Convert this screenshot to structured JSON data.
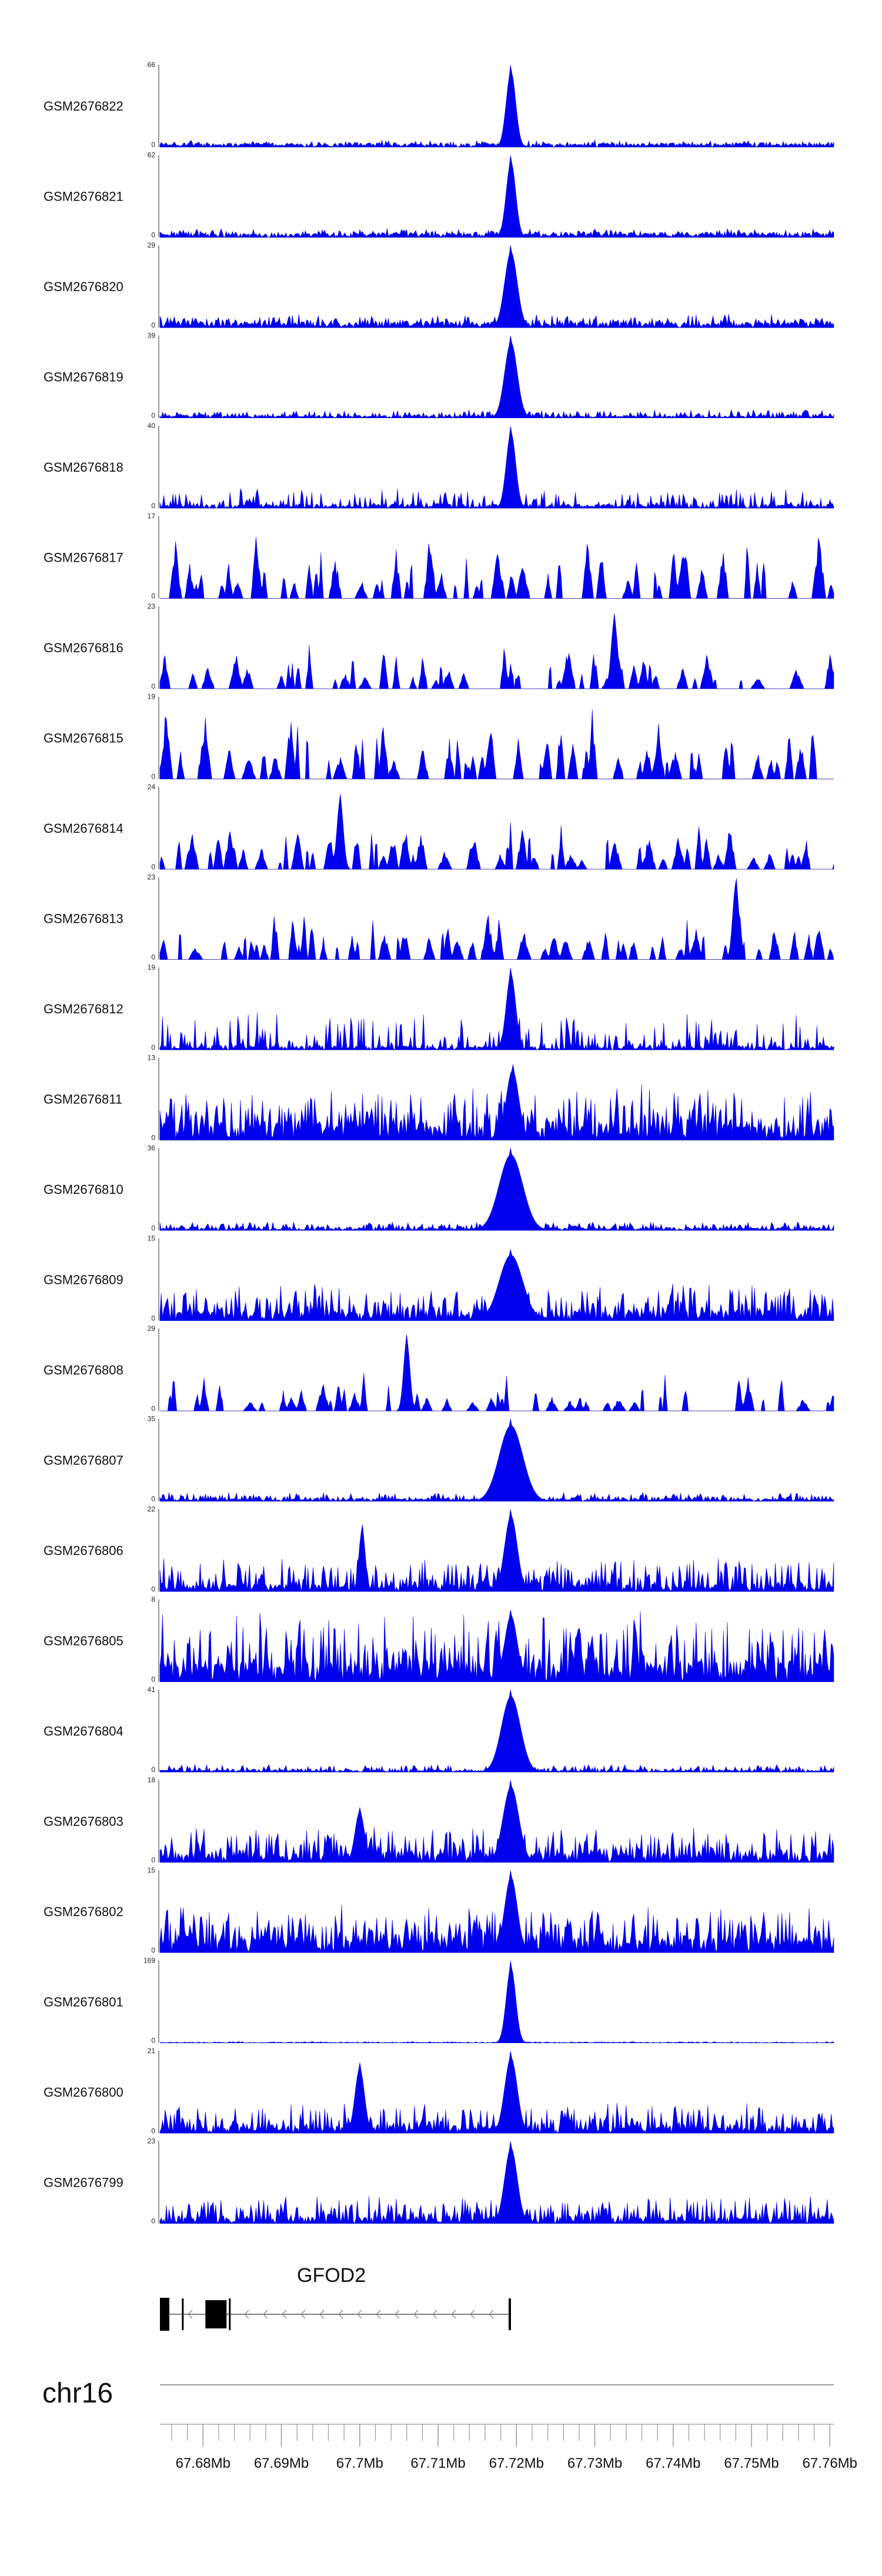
{
  "chart_data": {
    "type": "area",
    "title": "",
    "xlabel": "",
    "ylabel": "",
    "chromosome": "chr16",
    "xlim": [
      67.6745,
      67.7605
    ],
    "x_unit": "Mb",
    "x_ticks": [
      67.68,
      67.69,
      67.7,
      67.71,
      67.72,
      67.73,
      67.74,
      67.75,
      67.76
    ],
    "x_tick_labels": [
      "67.68Mb",
      "67.69Mb",
      "67.7Mb",
      "67.71Mb",
      "67.72Mb",
      "67.73Mb",
      "67.74Mb",
      "67.75Mb",
      "67.76Mb"
    ],
    "series_color": "#0000ee",
    "series": [
      {
        "name": "GSM2676822",
        "ymin": 0,
        "ymax": 66,
        "ymin_label": "0",
        "ymax_label": "66",
        "baseline": 3,
        "noise": 3,
        "peaks": [
          {
            "x": 67.7193,
            "height": 66,
            "width": 0.0006
          }
        ],
        "style": "dense"
      },
      {
        "name": "GSM2676821",
        "ymin": 0,
        "ymax": 62,
        "ymin_label": "0",
        "ymax_label": "62",
        "baseline": 3,
        "noise": 4,
        "peaks": [
          {
            "x": 67.7193,
            "height": 62,
            "width": 0.0006
          }
        ],
        "style": "dense"
      },
      {
        "name": "GSM2676820",
        "ymin": 0,
        "ymax": 29,
        "ymin_label": "0",
        "ymax_label": "29",
        "baseline": 2,
        "noise": 3,
        "peaks": [
          {
            "x": 67.7193,
            "height": 29,
            "width": 0.0008
          }
        ],
        "style": "dense"
      },
      {
        "name": "GSM2676819",
        "ymin": 0,
        "ymax": 39,
        "ymin_label": "0",
        "ymax_label": "39",
        "baseline": 1,
        "noise": 3,
        "peaks": [
          {
            "x": 67.7193,
            "height": 39,
            "width": 0.0008
          }
        ],
        "style": "dense"
      },
      {
        "name": "GSM2676818",
        "ymin": 0,
        "ymax": 40,
        "ymin_label": "0",
        "ymax_label": "40",
        "baseline": 2,
        "noise": 8,
        "peaks": [
          {
            "x": 67.7193,
            "height": 40,
            "width": 0.0006
          }
        ],
        "style": "spiky"
      },
      {
        "name": "GSM2676817",
        "ymin": 0,
        "ymax": 17,
        "ymin_label": "0",
        "ymax_label": "17",
        "baseline": 0,
        "noise": 15,
        "peaks": [],
        "style": "sparse"
      },
      {
        "name": "GSM2676816",
        "ymin": 0,
        "ymax": 23,
        "ymin_label": "0",
        "ymax_label": "23",
        "baseline": 0,
        "noise": 14,
        "peaks": [
          {
            "x": 67.7325,
            "height": 21,
            "width": 0.0004
          }
        ],
        "style": "sparse"
      },
      {
        "name": "GSM2676815",
        "ymin": 0,
        "ymax": 19,
        "ymin_label": "0",
        "ymax_label": "19",
        "baseline": 0,
        "noise": 17,
        "peaks": [],
        "style": "sparse"
      },
      {
        "name": "GSM2676814",
        "ymin": 0,
        "ymax": 24,
        "ymin_label": "0",
        "ymax_label": "24",
        "baseline": 0,
        "noise": 15,
        "peaks": [
          {
            "x": 67.6975,
            "height": 22,
            "width": 0.0004
          }
        ],
        "style": "sparse"
      },
      {
        "name": "GSM2676813",
        "ymin": 0,
        "ymax": 23,
        "ymin_label": "0",
        "ymax_label": "23",
        "baseline": 0,
        "noise": 15,
        "peaks": [
          {
            "x": 67.748,
            "height": 23,
            "width": 0.0004
          }
        ],
        "style": "sparse"
      },
      {
        "name": "GSM2676812",
        "ymin": 0,
        "ymax": 19,
        "ymin_label": "0",
        "ymax_label": "19",
        "baseline": 1,
        "noise": 8,
        "peaks": [
          {
            "x": 67.7193,
            "height": 19,
            "width": 0.0006
          }
        ],
        "style": "spiky"
      },
      {
        "name": "GSM2676811",
        "ymin": 0,
        "ymax": 13,
        "ymin_label": "0",
        "ymax_label": "13",
        "baseline": 3,
        "noise": 6,
        "peaks": [
          {
            "x": 67.7195,
            "height": 12,
            "width": 0.0008
          }
        ],
        "style": "dense"
      },
      {
        "name": "GSM2676810",
        "ymin": 0,
        "ymax": 36,
        "ymin_label": "0",
        "ymax_label": "36",
        "baseline": 1,
        "noise": 3,
        "peaks": [
          {
            "x": 67.7193,
            "height": 36,
            "width": 0.0015
          }
        ],
        "style": "dense"
      },
      {
        "name": "GSM2676809",
        "ymin": 0,
        "ymax": 15,
        "ymin_label": "0",
        "ymax_label": "15",
        "baseline": 2,
        "noise": 5,
        "peaks": [
          {
            "x": 67.7193,
            "height": 13,
            "width": 0.0015
          }
        ],
        "style": "dense"
      },
      {
        "name": "GSM2676808",
        "ymin": 0,
        "ymax": 29,
        "ymin_label": "0",
        "ymax_label": "29",
        "baseline": 0,
        "noise": 14,
        "peaks": [
          {
            "x": 67.706,
            "height": 27,
            "width": 0.0004
          }
        ],
        "style": "sparse"
      },
      {
        "name": "GSM2676807",
        "ymin": 0,
        "ymax": 35,
        "ymin_label": "0",
        "ymax_label": "35",
        "baseline": 1,
        "noise": 3,
        "peaks": [
          {
            "x": 67.7193,
            "height": 35,
            "width": 0.0015
          }
        ],
        "style": "dense"
      },
      {
        "name": "GSM2676806",
        "ymin": 0,
        "ymax": 22,
        "ymin_label": "0",
        "ymax_label": "22",
        "baseline": 2,
        "noise": 7,
        "peaks": [
          {
            "x": 67.7193,
            "height": 22,
            "width": 0.0008
          },
          {
            "x": 67.7003,
            "height": 18,
            "width": 0.0004
          }
        ],
        "style": "dense"
      },
      {
        "name": "GSM2676805",
        "ymin": 0,
        "ymax": 8,
        "ymin_label": "0",
        "ymax_label": "8",
        "baseline": 2,
        "noise": 5,
        "peaks": [
          {
            "x": 67.7193,
            "height": 7,
            "width": 0.0008
          }
        ],
        "style": "dense"
      },
      {
        "name": "GSM2676804",
        "ymin": 0,
        "ymax": 41,
        "ymin_label": "0",
        "ymax_label": "41",
        "baseline": 1,
        "noise": 3,
        "peaks": [
          {
            "x": 67.7193,
            "height": 41,
            "width": 0.0012
          }
        ],
        "style": "dense"
      },
      {
        "name": "GSM2676803",
        "ymin": 0,
        "ymax": 18,
        "ymin_label": "0",
        "ymax_label": "18",
        "baseline": 2,
        "noise": 6,
        "peaks": [
          {
            "x": 67.7193,
            "height": 18,
            "width": 0.001
          },
          {
            "x": 67.7,
            "height": 12,
            "width": 0.0006
          }
        ],
        "style": "dense"
      },
      {
        "name": "GSM2676802",
        "ymin": 0,
        "ymax": 15,
        "ymin_label": "0",
        "ymax_label": "15",
        "baseline": 3,
        "noise": 6,
        "peaks": [
          {
            "x": 67.7193,
            "height": 15,
            "width": 0.0008
          }
        ],
        "style": "dense"
      },
      {
        "name": "GSM2676801",
        "ymin": 0,
        "ymax": 169,
        "ymin_label": "0",
        "ymax_label": "169",
        "baseline": 1,
        "noise": 2,
        "peaks": [
          {
            "x": 67.7193,
            "height": 169,
            "width": 0.0006
          }
        ],
        "style": "dense"
      },
      {
        "name": "GSM2676800",
        "ymin": 0,
        "ymax": 21,
        "ymin_label": "0",
        "ymax_label": "21",
        "baseline": 2,
        "noise": 6,
        "peaks": [
          {
            "x": 67.7193,
            "height": 21,
            "width": 0.0008
          },
          {
            "x": 67.7,
            "height": 18,
            "width": 0.0006
          }
        ],
        "style": "dense"
      },
      {
        "name": "GSM2676799",
        "ymin": 0,
        "ymax": 23,
        "ymin_label": "0",
        "ymax_label": "23",
        "baseline": 2,
        "noise": 6,
        "peaks": [
          {
            "x": 67.7193,
            "height": 23,
            "width": 0.0008
          }
        ],
        "style": "dense"
      }
    ],
    "gene": {
      "name": "GFOD2",
      "strand": "-",
      "start": 67.6745,
      "end": 67.7193,
      "exons": [
        {
          "start": 67.6745,
          "end": 67.6757,
          "type": "utr"
        },
        {
          "start": 67.6773,
          "end": 67.6775,
          "type": "thin"
        },
        {
          "start": 67.6803,
          "end": 67.683,
          "type": "cds"
        },
        {
          "start": 67.6833,
          "end": 67.6835,
          "type": "thin"
        },
        {
          "start": 67.719,
          "end": 67.7193,
          "type": "thin"
        }
      ]
    }
  }
}
